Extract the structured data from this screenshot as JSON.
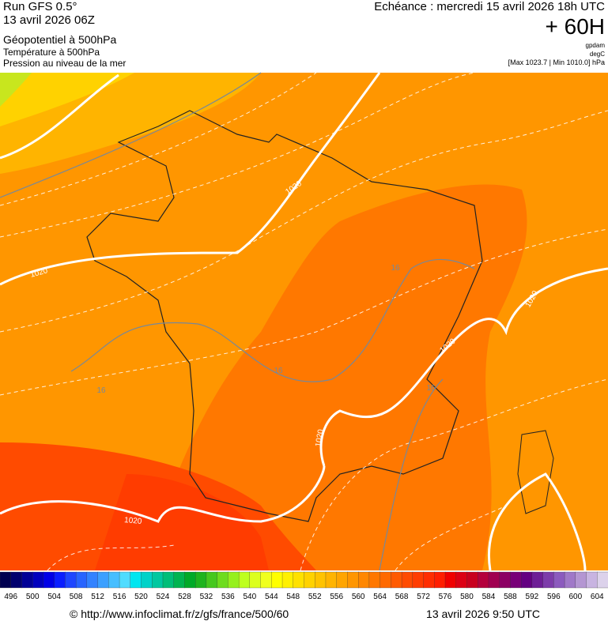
{
  "header": {
    "run": "Run GFS 0.5°",
    "run_date": "13 avril 2026 06Z",
    "field1": "Géopotentiel à 500hPa",
    "field2": "Température à 500hPa",
    "field3": "Pression au niveau de la mer",
    "echeance": "Echéance : mercredi 15 avril 2026 18h UTC",
    "lead": "+ 60H",
    "unit1": "gpdam",
    "unit2": "degC",
    "range": "[Max 1023.7 | Min 1010.0] hPa"
  },
  "map": {
    "contour_labels": [
      "1020",
      "1020",
      "1020",
      "1020",
      "1020",
      "1020",
      "16",
      "16",
      "16",
      "16"
    ]
  },
  "colorbar": {
    "labels": [
      496,
      500,
      504,
      508,
      512,
      516,
      520,
      524,
      528,
      532,
      536,
      540,
      544,
      548,
      552,
      556,
      560,
      564,
      568,
      572,
      576,
      580,
      584,
      588,
      592,
      596,
      600,
      604
    ],
    "colors": [
      "#000050",
      "#00006e",
      "#000096",
      "#0000be",
      "#0000e6",
      "#0a1eff",
      "#1e46ff",
      "#2864ff",
      "#3282ff",
      "#3ca0ff",
      "#46beff",
      "#50dcff",
      "#00e6f0",
      "#00d2c8",
      "#00c8a0",
      "#00be78",
      "#00b450",
      "#00aa28",
      "#1eb41e",
      "#46c81e",
      "#6edc1e",
      "#96f01e",
      "#beff1e",
      "#dcff1e",
      "#f0ff1e",
      "#ffff00",
      "#fff000",
      "#ffe100",
      "#ffd200",
      "#ffc300",
      "#ffb400",
      "#ffa500",
      "#ff9600",
      "#ff8700",
      "#ff7800",
      "#ff6900",
      "#ff5a00",
      "#ff4b00",
      "#ff3c00",
      "#ff2d00",
      "#ff1e00",
      "#f00000",
      "#dc0014",
      "#c8001e",
      "#b4003c",
      "#a00050",
      "#8c0064",
      "#780078",
      "#640082",
      "#6e1e96",
      "#7d3caa",
      "#8c5abe",
      "#a078c8",
      "#b496d2",
      "#c8b4e1",
      "#dcd2eb"
    ]
  },
  "footer": {
    "source": "© http://www.infoclimat.fr/z/gfs/france/500/60",
    "issued": "13 avril 2026  9:50 UTC"
  }
}
